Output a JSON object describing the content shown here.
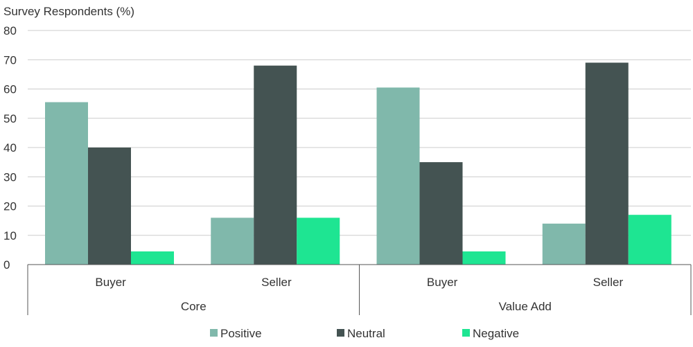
{
  "chart_data": {
    "type": "bar",
    "ylabel": "Survey Respondents (%)",
    "ylim": [
      0,
      80
    ],
    "yticks": [
      0,
      10,
      20,
      30,
      40,
      50,
      60,
      70,
      80
    ],
    "grid": true,
    "legend_position": "bottom-center",
    "groups": [
      {
        "label": "Core",
        "categories": [
          "Buyer",
          "Seller"
        ]
      },
      {
        "label": "Value Add",
        "categories": [
          "Buyer",
          "Seller"
        ]
      }
    ],
    "series": [
      {
        "name": "Positive",
        "color": "#80b8ab",
        "values": [
          55.5,
          16,
          60.5,
          14
        ]
      },
      {
        "name": "Neutral",
        "color": "#445352",
        "values": [
          40,
          68,
          35,
          69
        ]
      },
      {
        "name": "Negative",
        "color": "#1ee592",
        "values": [
          4.5,
          16,
          4.5,
          17
        ]
      }
    ]
  }
}
